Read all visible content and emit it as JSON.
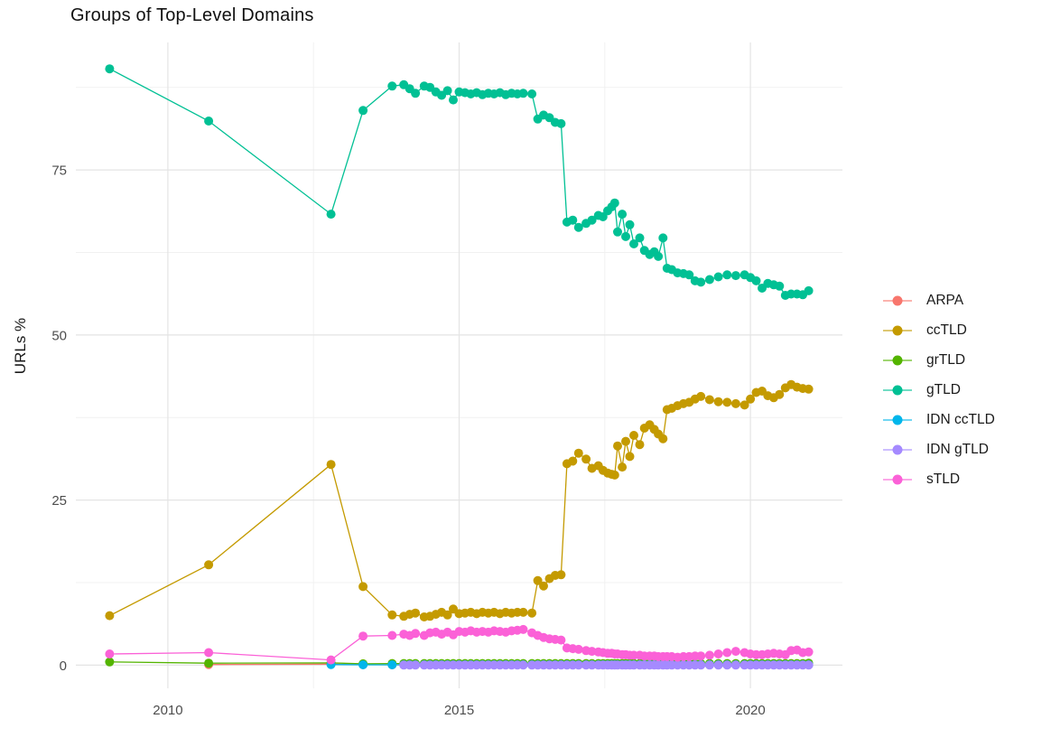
{
  "chart_data": {
    "type": "line",
    "title": "Groups of Top-Level Domains",
    "xlabel": "",
    "ylabel": "URLs %",
    "grid": true,
    "legend_position": "right",
    "marker": "circle",
    "x_ticks": [
      2010,
      2015,
      2020
    ],
    "x_tick_labels": [
      "2010",
      "2015",
      "2020"
    ],
    "x_minor": [
      2012.5,
      2017.5
    ],
    "y_ticks": [
      0,
      25,
      50,
      75
    ],
    "y_tick_labels": [
      "0",
      "25",
      "50",
      "75"
    ],
    "y_minor": [
      12.5,
      37.5,
      62.5,
      87.5
    ],
    "xlim": [
      2008.42,
      2021.58
    ],
    "ylim": [
      -3.5,
      94.3
    ],
    "x": [
      2009.0,
      2010.7,
      2012.8,
      2013.35,
      2013.85,
      2014.05,
      2014.15,
      2014.25,
      2014.4,
      2014.5,
      2014.6,
      2014.7,
      2014.8,
      2014.9,
      2015.0,
      2015.1,
      2015.2,
      2015.3,
      2015.4,
      2015.5,
      2015.6,
      2015.7,
      2015.8,
      2015.9,
      2016.0,
      2016.1,
      2016.25,
      2016.35,
      2016.45,
      2016.55,
      2016.65,
      2016.75,
      2016.85,
      2016.95,
      2017.05,
      2017.18,
      2017.28,
      2017.39,
      2017.47,
      2017.55,
      2017.62,
      2017.67,
      2017.72,
      2017.8,
      2017.86,
      2017.93,
      2018.0,
      2018.1,
      2018.18,
      2018.27,
      2018.35,
      2018.42,
      2018.5,
      2018.57,
      2018.65,
      2018.75,
      2018.85,
      2018.95,
      2019.05,
      2019.15,
      2019.3,
      2019.45,
      2019.6,
      2019.75,
      2019.9,
      2020.0,
      2020.1,
      2020.2,
      2020.3,
      2020.4,
      2020.5,
      2020.6,
      2020.7,
      2020.8,
      2020.9,
      2021.0
    ],
    "series": [
      {
        "name": "ARPA",
        "color": "#F8766D",
        "values": [
          null,
          0.1,
          0.15,
          0.1,
          0.05,
          0.05,
          0.05,
          0.05,
          0.05,
          0.05,
          0.05,
          0.05,
          0.05,
          0.05,
          0.05,
          0.05,
          0.05,
          0.05,
          0.05,
          0.05,
          0.05,
          0.05,
          0.05,
          0.05,
          0.05,
          0.05,
          0.05,
          0.05,
          0.05,
          0.05,
          0.05,
          0.05,
          0.05,
          0.05,
          0.05,
          0.05,
          0.05,
          0.05,
          0.05,
          0.05,
          0.05,
          0.05,
          0.05,
          0.05,
          0.05,
          0.05,
          0.05,
          0.05,
          0.05,
          0.05,
          0.05,
          0.05,
          0.05,
          0.05,
          0.05,
          0.05,
          0.05,
          0.05,
          0.05,
          0.05,
          0.05,
          0.05,
          0.05,
          0.05,
          0.05,
          0.05,
          0.05,
          0.05,
          0.05,
          0.05,
          0.05,
          0.05,
          0.05,
          0.05,
          0.05,
          0.05
        ]
      },
      {
        "name": "ccTLD",
        "color": "#C49A00",
        "values": [
          7.5,
          15.2,
          30.4,
          11.9,
          7.6,
          7.4,
          7.7,
          7.9,
          7.3,
          7.4,
          7.7,
          8.0,
          7.6,
          8.5,
          7.8,
          7.9,
          8.0,
          7.8,
          8.0,
          7.9,
          8.0,
          7.8,
          8.0,
          7.9,
          8.0,
          8.0,
          7.9,
          12.8,
          12.0,
          13.1,
          13.6,
          13.7,
          30.5,
          30.9,
          32.1,
          31.2,
          29.8,
          30.2,
          29.5,
          29.1,
          28.9,
          28.8,
          33.2,
          30.0,
          33.9,
          31.6,
          34.8,
          33.4,
          35.9,
          36.4,
          35.7,
          35.0,
          34.3,
          38.7,
          38.9,
          39.3,
          39.6,
          39.8,
          40.3,
          40.7,
          40.2,
          39.9,
          39.8,
          39.6,
          39.4,
          40.3,
          41.3,
          41.5,
          40.8,
          40.5,
          41.0,
          42.0,
          42.5,
          42.1,
          41.9,
          41.8
        ]
      },
      {
        "name": "grTLD",
        "color": "#53B400",
        "values": [
          0.5,
          0.3,
          0.35,
          0.2,
          0.25,
          0.25,
          0.25,
          0.25,
          0.25,
          0.25,
          0.25,
          0.25,
          0.25,
          0.25,
          0.25,
          0.25,
          0.25,
          0.25,
          0.25,
          0.25,
          0.25,
          0.25,
          0.25,
          0.25,
          0.25,
          0.25,
          0.25,
          0.25,
          0.25,
          0.25,
          0.25,
          0.25,
          0.25,
          0.25,
          0.25,
          0.25,
          0.25,
          0.25,
          0.25,
          0.25,
          0.25,
          0.25,
          0.25,
          0.25,
          0.25,
          0.25,
          0.25,
          0.25,
          0.25,
          0.25,
          0.25,
          0.25,
          0.25,
          0.25,
          0.25,
          0.25,
          0.25,
          0.25,
          0.25,
          0.25,
          0.25,
          0.25,
          0.25,
          0.25,
          0.25,
          0.25,
          0.25,
          0.25,
          0.25,
          0.25,
          0.25,
          0.25,
          0.25,
          0.25,
          0.25,
          0.3
        ]
      },
      {
        "name": "gTLD",
        "color": "#00C094",
        "values": [
          90.3,
          82.4,
          68.3,
          84.0,
          87.7,
          87.9,
          87.3,
          86.6,
          87.7,
          87.5,
          86.8,
          86.3,
          87.0,
          85.6,
          86.8,
          86.7,
          86.5,
          86.7,
          86.4,
          86.6,
          86.5,
          86.7,
          86.4,
          86.6,
          86.5,
          86.6,
          86.5,
          82.7,
          83.3,
          82.9,
          82.2,
          82.0,
          67.1,
          67.4,
          66.3,
          66.9,
          67.4,
          68.1,
          67.9,
          68.8,
          69.4,
          70.0,
          65.6,
          68.3,
          64.9,
          66.7,
          63.8,
          64.7,
          62.8,
          62.2,
          62.6,
          61.9,
          64.7,
          60.1,
          59.9,
          59.4,
          59.3,
          59.1,
          58.2,
          58.0,
          58.4,
          58.8,
          59.1,
          59.0,
          59.1,
          58.7,
          58.2,
          57.1,
          57.8,
          57.6,
          57.4,
          56.0,
          56.2,
          56.2,
          56.1,
          56.7
        ]
      },
      {
        "name": "IDN ccTLD",
        "color": "#00B6EB",
        "values": [
          null,
          null,
          0.1,
          0.05,
          0.05,
          0.05,
          0.05,
          0.05,
          0.05,
          0.05,
          0.05,
          0.05,
          0.05,
          0.05,
          0.05,
          0.05,
          0.05,
          0.05,
          0.05,
          0.05,
          0.05,
          0.05,
          0.05,
          0.05,
          0.05,
          0.05,
          0.05,
          0.05,
          0.05,
          0.05,
          0.05,
          0.05,
          0.05,
          0.05,
          0.05,
          0.05,
          0.05,
          0.05,
          0.05,
          0.05,
          0.05,
          0.05,
          0.05,
          0.05,
          0.05,
          0.05,
          0.05,
          0.05,
          0.05,
          0.05,
          0.05,
          0.05,
          0.05,
          0.05,
          0.05,
          0.05,
          0.05,
          0.05,
          0.05,
          0.05,
          0.05,
          0.05,
          0.05,
          0.05,
          0.05,
          0.05,
          0.05,
          0.05,
          0.05,
          0.05,
          0.05,
          0.05,
          0.05,
          0.05,
          0.05,
          0.05
        ]
      },
      {
        "name": "IDN gTLD",
        "color": "#A58AFF",
        "values": [
          null,
          null,
          null,
          null,
          null,
          0.02,
          0.02,
          0.02,
          0.02,
          0.02,
          0.02,
          0.02,
          0.02,
          0.02,
          0.02,
          0.02,
          0.02,
          0.02,
          0.02,
          0.02,
          0.02,
          0.02,
          0.02,
          0.02,
          0.02,
          0.02,
          0.02,
          0.02,
          0.02,
          0.02,
          0.02,
          0.02,
          0.02,
          0.02,
          0.02,
          0.02,
          0.02,
          0.02,
          0.02,
          0.02,
          0.02,
          0.02,
          0.02,
          0.02,
          0.02,
          0.02,
          0.02,
          0.02,
          0.02,
          0.02,
          0.02,
          0.02,
          0.02,
          0.02,
          0.02,
          0.02,
          0.02,
          0.02,
          0.02,
          0.02,
          0.02,
          0.02,
          0.02,
          0.02,
          0.02,
          0.02,
          0.02,
          0.02,
          0.02,
          0.02,
          0.02,
          0.02,
          0.02,
          0.02,
          0.02,
          0.02
        ]
      },
      {
        "name": "sTLD",
        "color": "#FB61D7",
        "values": [
          1.7,
          1.9,
          0.8,
          4.4,
          4.5,
          4.7,
          4.5,
          4.8,
          4.5,
          4.9,
          5.0,
          4.7,
          5.0,
          4.6,
          5.1,
          5.0,
          5.2,
          5.0,
          5.1,
          5.0,
          5.2,
          5.1,
          5.0,
          5.2,
          5.3,
          5.4,
          4.9,
          4.5,
          4.2,
          4.0,
          3.9,
          3.8,
          2.6,
          2.5,
          2.4,
          2.2,
          2.1,
          2.0,
          1.9,
          1.8,
          1.8,
          1.7,
          1.7,
          1.6,
          1.6,
          1.5,
          1.5,
          1.5,
          1.4,
          1.4,
          1.4,
          1.3,
          1.3,
          1.3,
          1.3,
          1.2,
          1.3,
          1.3,
          1.4,
          1.4,
          1.5,
          1.7,
          1.9,
          2.1,
          1.9,
          1.7,
          1.6,
          1.6,
          1.7,
          1.8,
          1.7,
          1.6,
          2.2,
          2.3,
          1.9,
          2.0
        ]
      }
    ],
    "style": {
      "grid_major_color": "#E4E4E4",
      "grid_minor_color": "#F1F1F1",
      "tick_label_color": "#4D4D4D",
      "title_color": "#111111",
      "axis_title_color": "#1A1A1A"
    }
  }
}
